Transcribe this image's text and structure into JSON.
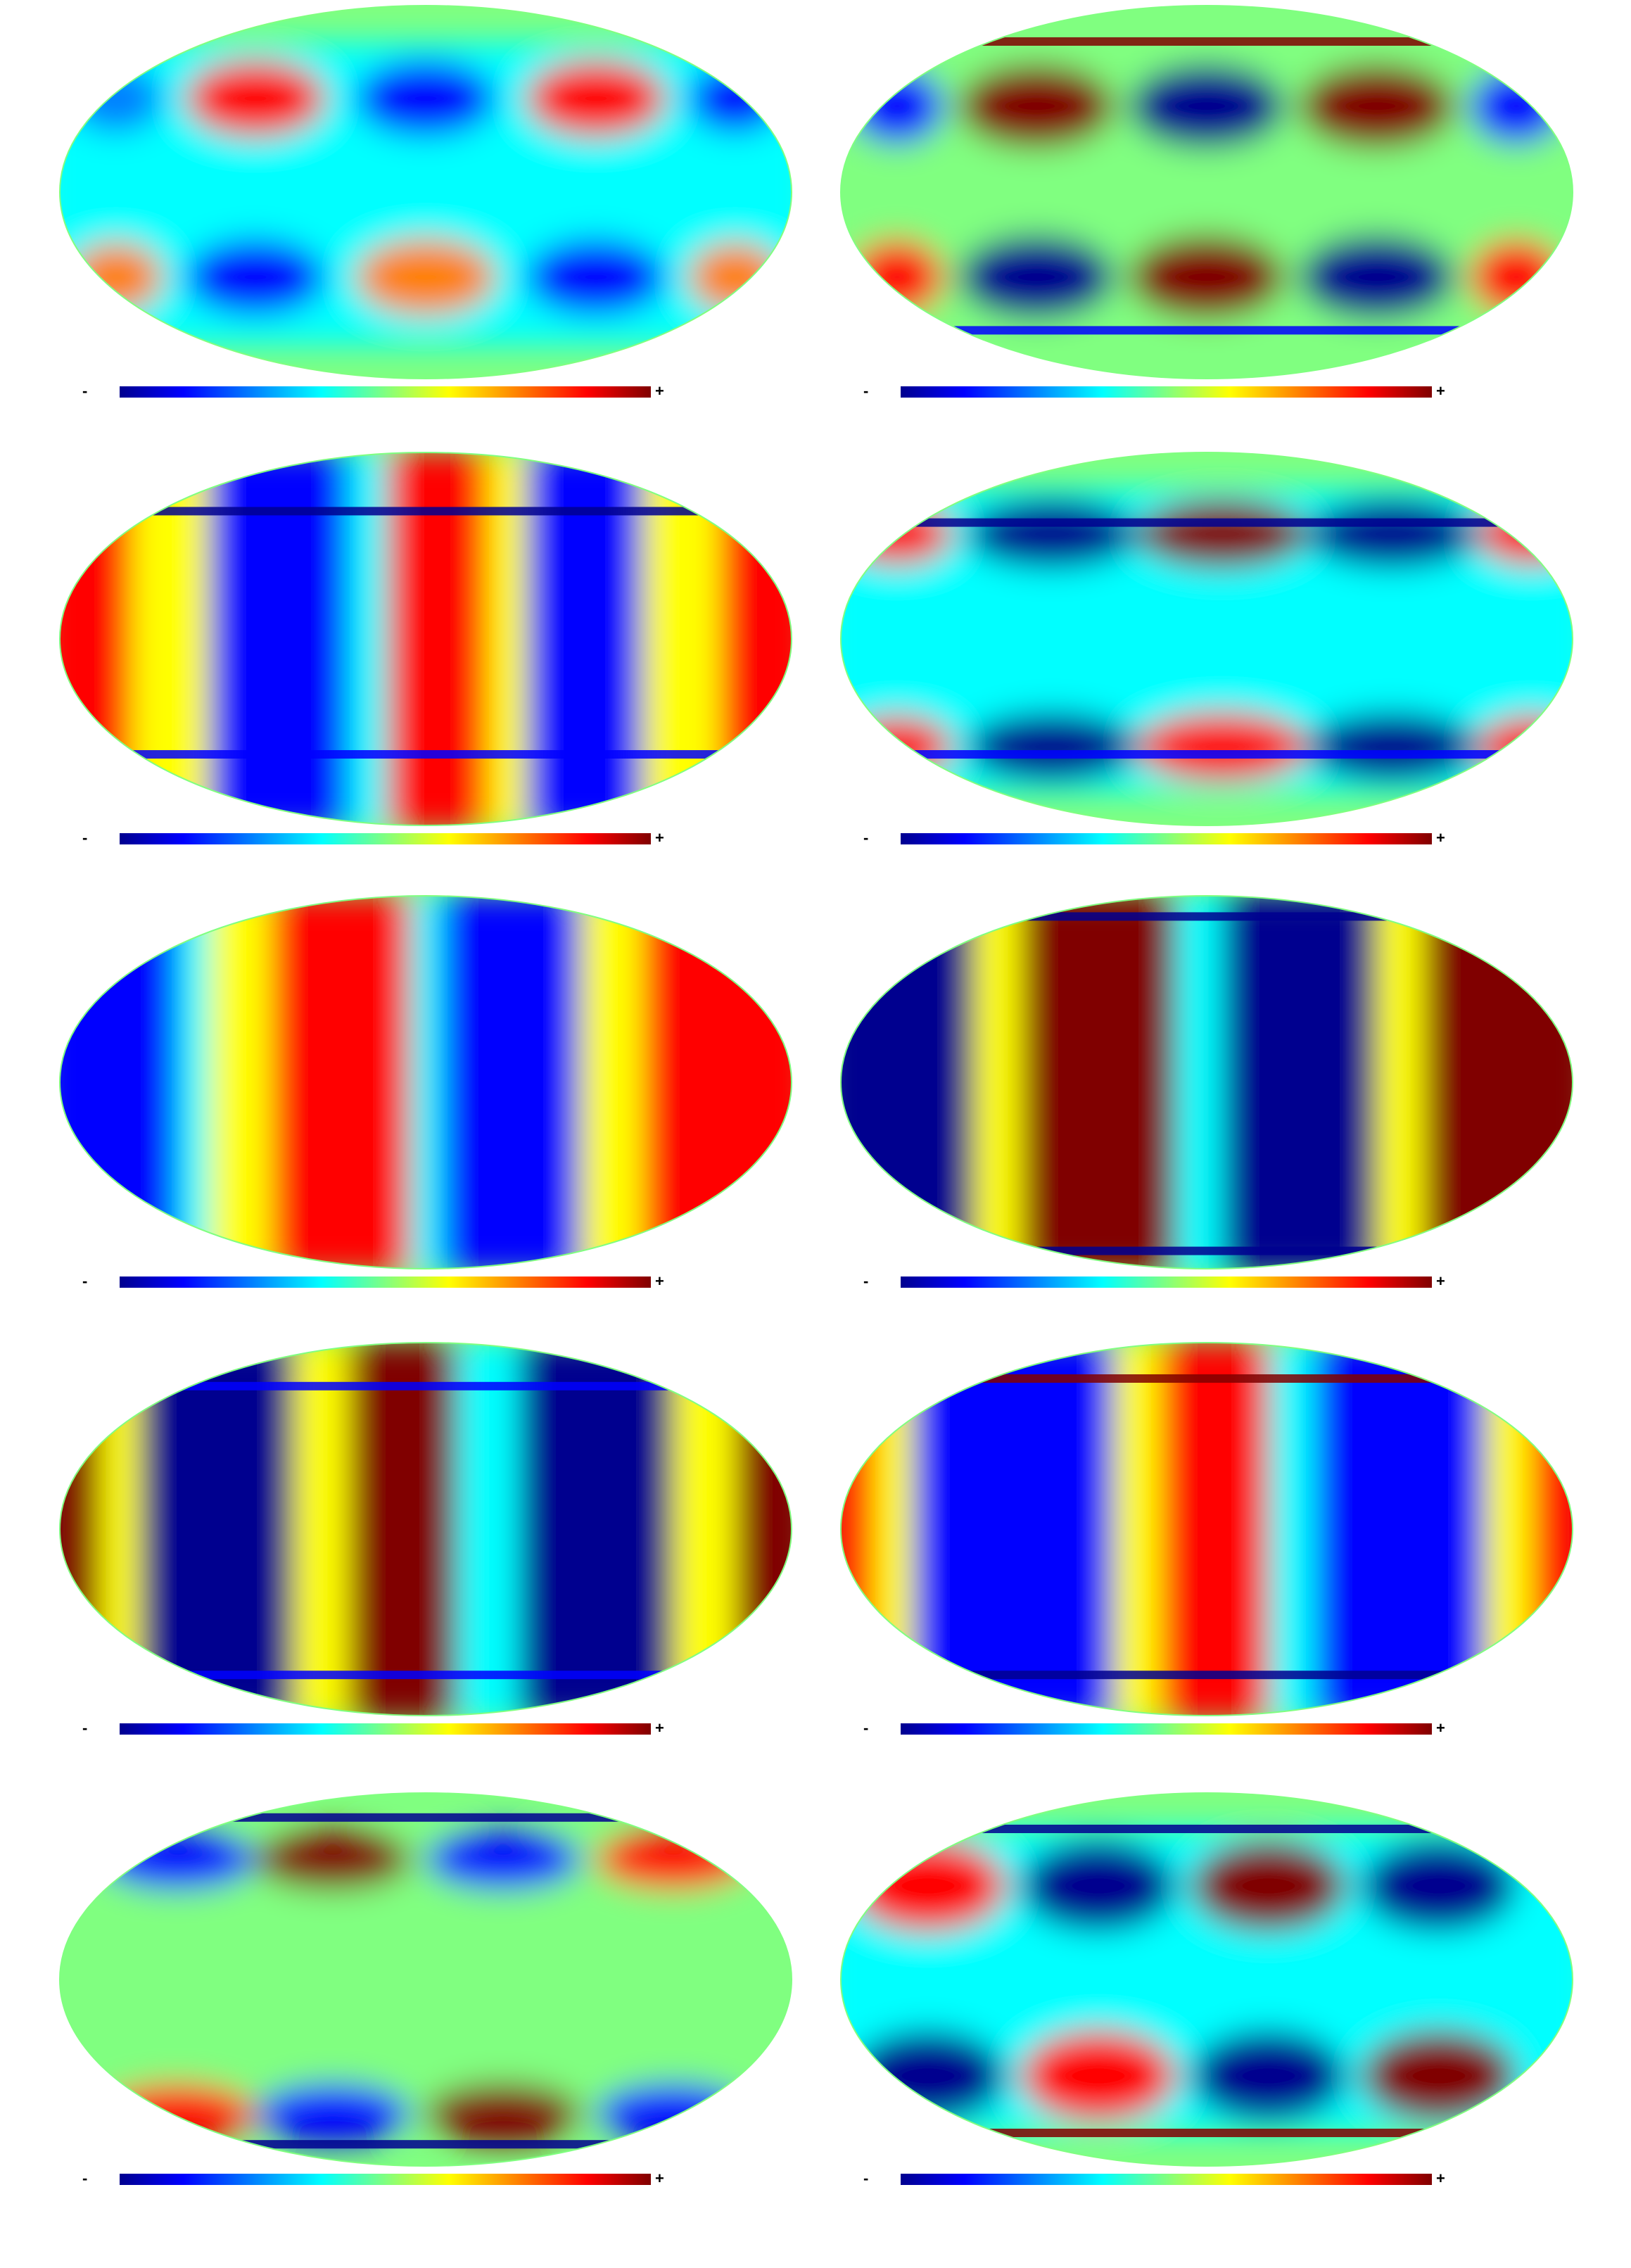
{
  "figure": {
    "panels": [
      {
        "id": "p1",
        "colorbar": {
          "min_label": "-",
          "max_label": "+"
        }
      },
      {
        "id": "p2",
        "colorbar": {
          "min_label": "-",
          "max_label": "+"
        }
      },
      {
        "id": "p3",
        "colorbar": {
          "min_label": "-",
          "max_label": "+"
        }
      },
      {
        "id": "p4",
        "colorbar": {
          "min_label": "-",
          "max_label": "+"
        }
      },
      {
        "id": "p5",
        "colorbar": {
          "min_label": "-",
          "max_label": "+"
        }
      },
      {
        "id": "p6",
        "colorbar": {
          "min_label": "-",
          "max_label": "+"
        }
      },
      {
        "id": "p7",
        "colorbar": {
          "min_label": "-",
          "max_label": "+"
        }
      },
      {
        "id": "p8",
        "colorbar": {
          "min_label": "-",
          "max_label": "+"
        }
      },
      {
        "id": "p9",
        "colorbar": {
          "min_label": "-",
          "max_label": "+"
        }
      },
      {
        "id": "p10",
        "colorbar": {
          "min_label": "-",
          "max_label": "+"
        }
      }
    ],
    "colormap": [
      "#00008f",
      "#0000ff",
      "#0080ff",
      "#00ffff",
      "#80ff80",
      "#ffff00",
      "#ff8000",
      "#ff0000",
      "#800000"
    ],
    "background_color": "#80ff80"
  }
}
